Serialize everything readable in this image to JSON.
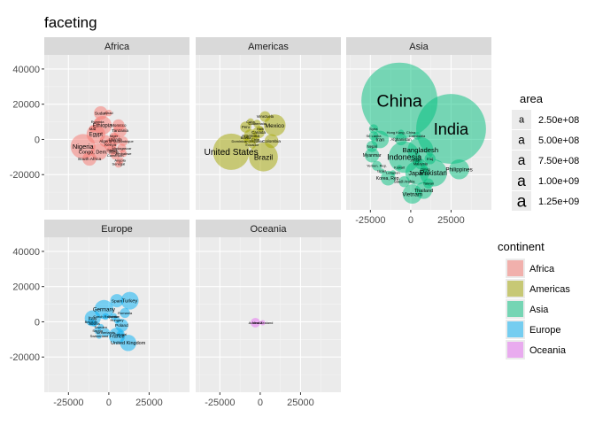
{
  "chart_data": {
    "type": "scatter",
    "title": "faceting",
    "xlabel": "",
    "ylabel": "",
    "xlim": [
      -40000,
      50000
    ],
    "ylim": [
      -40000,
      48000
    ],
    "x_ticks": [
      -25000,
      0,
      25000
    ],
    "y_ticks": [
      -20000,
      0,
      20000,
      40000
    ],
    "x_tick_labels": [
      "-25000",
      "0",
      "25000"
    ],
    "y_tick_labels": [
      "-20000",
      "0",
      "20000",
      "40000"
    ],
    "grid": true,
    "legend_position": "right",
    "colors": {
      "Africa": "#F8766D",
      "Americas": "#A3A500",
      "Asia": "#00BF7D",
      "Europe": "#00B0F6",
      "Oceania": "#E76BF3",
      "panel_bg": "#EBEBEB",
      "strip_bg": "#D9D9D9"
    },
    "legend_size": {
      "title": "area",
      "glyph": "a",
      "entries": [
        "2.50e+08",
        "5.00e+08",
        "7.50e+08",
        "1.00e+09",
        "1.25e+09"
      ]
    },
    "legend_color": {
      "title": "continent",
      "entries": [
        "Africa",
        "Americas",
        "Asia",
        "Europe",
        "Oceania"
      ]
    },
    "facets": [
      {
        "name": "Africa",
        "points": [
          {
            "label": "Nigeria",
            "x": -16000,
            "y": -4000,
            "area": 140000000
          },
          {
            "label": "Egypt",
            "x": -8000,
            "y": 3000,
            "area": 80000000
          },
          {
            "label": "Ethiopia",
            "x": -4000,
            "y": 8000,
            "area": 80000000
          },
          {
            "label": "Congo, Dem. Rep.",
            "x": -6000,
            "y": -7000,
            "area": 64000000
          },
          {
            "label": "South Africa",
            "x": -12000,
            "y": -11000,
            "area": 44000000
          },
          {
            "label": "Sudan",
            "x": -5000,
            "y": 15000,
            "area": 42000000
          },
          {
            "label": "Tanzania",
            "x": 7000,
            "y": 5000,
            "area": 40000000
          },
          {
            "label": "Kenya",
            "x": 1000,
            "y": -3000,
            "area": 36000000
          },
          {
            "label": "Morocco",
            "x": 6000,
            "y": 8000,
            "area": 33000000
          },
          {
            "label": "Algeria",
            "x": -2000,
            "y": -1000,
            "area": 33000000
          },
          {
            "label": "Uganda",
            "x": 4000,
            "y": 0,
            "area": 30000000
          },
          {
            "label": "Ghana",
            "x": 2000,
            "y": -6000,
            "area": 23000000
          },
          {
            "label": "Mozambique",
            "x": 9000,
            "y": -1000,
            "area": 20000000
          },
          {
            "label": "Madagascar",
            "x": 8000,
            "y": -5000,
            "area": 19000000
          },
          {
            "label": "Cameroon",
            "x": 4000,
            "y": -9000,
            "area": 18000000
          },
          {
            "label": "Angola",
            "x": 7000,
            "y": -12000,
            "area": 12000000
          },
          {
            "label": "Niger",
            "x": 3000,
            "y": 2000,
            "area": 12000000
          },
          {
            "label": "Mali",
            "x": -10000,
            "y": 6000,
            "area": 12000000
          },
          {
            "label": "Senegal",
            "x": 6000,
            "y": -14000,
            "area": 12000000
          },
          {
            "label": "Zimbabwe",
            "x": 9000,
            "y": -8000,
            "area": 12000000
          },
          {
            "label": "Chad",
            "x": 0,
            "y": 15000,
            "area": 10000000
          },
          {
            "label": "Rwanda",
            "x": -7000,
            "y": 10000,
            "area": 9000000
          }
        ]
      },
      {
        "name": "Americas",
        "points": [
          {
            "label": "United States",
            "x": -18000,
            "y": -7000,
            "area": 301000000
          },
          {
            "label": "Brazil",
            "x": 2000,
            "y": -10000,
            "area": 190000000
          },
          {
            "label": "Mexico",
            "x": 9000,
            "y": 8000,
            "area": 108000000
          },
          {
            "label": "Colombia",
            "x": 7000,
            "y": -1000,
            "area": 44000000
          },
          {
            "label": "Argentina",
            "x": -6000,
            "y": 2000,
            "area": 40000000
          },
          {
            "label": "Canada",
            "x": -1000,
            "y": 4000,
            "area": 33000000
          },
          {
            "label": "Peru",
            "x": -9000,
            "y": 7000,
            "area": 28000000
          },
          {
            "label": "Venezuela",
            "x": 3000,
            "y": 13000,
            "area": 26000000
          },
          {
            "label": "Chile",
            "x": -3000,
            "y": 0,
            "area": 16000000
          },
          {
            "label": "Ecuador",
            "x": -5000,
            "y": -3000,
            "area": 14000000
          },
          {
            "label": "Guatemala",
            "x": -2000,
            "y": 9000,
            "area": 13000000
          },
          {
            "label": "Cuba",
            "x": -6000,
            "y": 10000,
            "area": 11000000
          },
          {
            "label": "Bolivia",
            "x": -9000,
            "y": 1000,
            "area": 9000000
          },
          {
            "label": "Haiti",
            "x": 0,
            "y": 6000,
            "area": 8500000
          },
          {
            "label": "Dominican Republic",
            "x": -8000,
            "y": -1000,
            "area": 9300000
          }
        ]
      },
      {
        "name": "Asia",
        "points": [
          {
            "label": "China",
            "x": -7000,
            "y": 22000,
            "area": 1318683096
          },
          {
            "label": "India",
            "x": 25000,
            "y": 6000,
            "area": 1110396331
          },
          {
            "label": "Indonesia",
            "x": -4000,
            "y": -10000,
            "area": 223547000
          },
          {
            "label": "Pakistan",
            "x": 14000,
            "y": -19000,
            "area": 169270617
          },
          {
            "label": "Bangladesh",
            "x": 6000,
            "y": -6000,
            "area": 150448339
          },
          {
            "label": "Japan",
            "x": 4000,
            "y": -19000,
            "area": 127467972
          },
          {
            "label": "Philippines",
            "x": 30000,
            "y": -17000,
            "area": 91077287
          },
          {
            "label": "Vietnam",
            "x": 1000,
            "y": -31000,
            "area": 85262356
          },
          {
            "label": "Iran",
            "x": -19000,
            "y": 0,
            "area": 69453570
          },
          {
            "label": "Thailand",
            "x": 8000,
            "y": -29000,
            "area": 65068149
          },
          {
            "label": "Myanmar",
            "x": -24000,
            "y": -9000,
            "area": 47761980
          },
          {
            "label": "Korea, Rep.",
            "x": -14000,
            "y": -22000,
            "area": 49044790
          },
          {
            "label": "Iraq",
            "x": 12000,
            "y": -11000,
            "area": 27499638
          },
          {
            "label": "Afghanistan",
            "x": -6000,
            "y": 0,
            "area": 31889923
          },
          {
            "label": "Nepal",
            "x": -24000,
            "y": -4000,
            "area": 28901790
          },
          {
            "label": "Saudi Arabia",
            "x": -4000,
            "y": -24000,
            "area": 27601038
          },
          {
            "label": "Malaysia",
            "x": 6000,
            "y": -14000,
            "area": 24821286
          },
          {
            "label": "Taiwan",
            "x": 11000,
            "y": -25000,
            "area": 23174294
          },
          {
            "label": "Sri Lanka",
            "x": -23000,
            "y": 2000,
            "area": 20378239
          },
          {
            "label": "Yemen, Rep.",
            "x": -21000,
            "y": -15000,
            "area": 22211743
          },
          {
            "label": "Syria",
            "x": -23000,
            "y": 6000,
            "area": 19314747
          },
          {
            "label": "Cambodia",
            "x": 4000,
            "y": 2000,
            "area": 14131858
          },
          {
            "label": "Hong Kong, China",
            "x": -6000,
            "y": 4000,
            "area": 6980412
          },
          {
            "label": "Jordan",
            "x": 3000,
            "y": -12000,
            "area": 6053193
          },
          {
            "label": "Israel",
            "x": -18000,
            "y": -18000,
            "area": 6426679
          },
          {
            "label": "Lebanon",
            "x": -11000,
            "y": -19000,
            "area": 3921278
          },
          {
            "label": "Oman",
            "x": 9000,
            "y": -17000,
            "area": 3204897
          },
          {
            "label": "Kuwait",
            "x": -7000,
            "y": -16000,
            "area": 2505559
          }
        ]
      },
      {
        "name": "Europe",
        "points": [
          {
            "label": "Germany",
            "x": -3000,
            "y": 7000,
            "area": 82400996
          },
          {
            "label": "Turkey",
            "x": 13000,
            "y": 12000,
            "area": 71158647
          },
          {
            "label": "France",
            "x": 5000,
            "y": -8000,
            "area": 61083916
          },
          {
            "label": "United Kingdom",
            "x": 12000,
            "y": -12000,
            "area": 60776238
          },
          {
            "label": "Italy",
            "x": -10000,
            "y": 2000,
            "area": 58147733
          },
          {
            "label": "Spain",
            "x": 5000,
            "y": 12000,
            "area": 40448191
          },
          {
            "label": "Poland",
            "x": 8000,
            "y": -2000,
            "area": 38518241
          },
          {
            "label": "Romania",
            "x": 10000,
            "y": 5000,
            "area": 22276056
          },
          {
            "label": "Netherlands",
            "x": -2000,
            "y": -6000,
            "area": 16570613
          },
          {
            "label": "Greece",
            "x": 3000,
            "y": 3000,
            "area": 10706290
          },
          {
            "label": "Portugal",
            "x": 7000,
            "y": -7000,
            "area": 10642836
          },
          {
            "label": "Belgium",
            "x": -11000,
            "y": 0,
            "area": 10392226
          },
          {
            "label": "Czech Republic",
            "x": -2000,
            "y": 3000,
            "area": 10228744
          },
          {
            "label": "Hungary",
            "x": 5000,
            "y": 1000,
            "area": 9956108
          },
          {
            "label": "Sweden",
            "x": -5000,
            "y": -3000,
            "area": 9031088
          },
          {
            "label": "Austria",
            "x": -9000,
            "y": -1000,
            "area": 8199783
          },
          {
            "label": "Switzerland",
            "x": -6000,
            "y": -8000,
            "area": 7554661
          },
          {
            "label": "Serbia",
            "x": -7000,
            "y": -5000,
            "area": 10150265
          }
        ]
      },
      {
        "name": "Oceania",
        "points": [
          {
            "label": "Australia",
            "x": -3000,
            "y": -500,
            "area": 20434176
          },
          {
            "label": "New Zealand",
            "x": 1500,
            "y": -500,
            "area": 4115771
          }
        ]
      }
    ]
  }
}
